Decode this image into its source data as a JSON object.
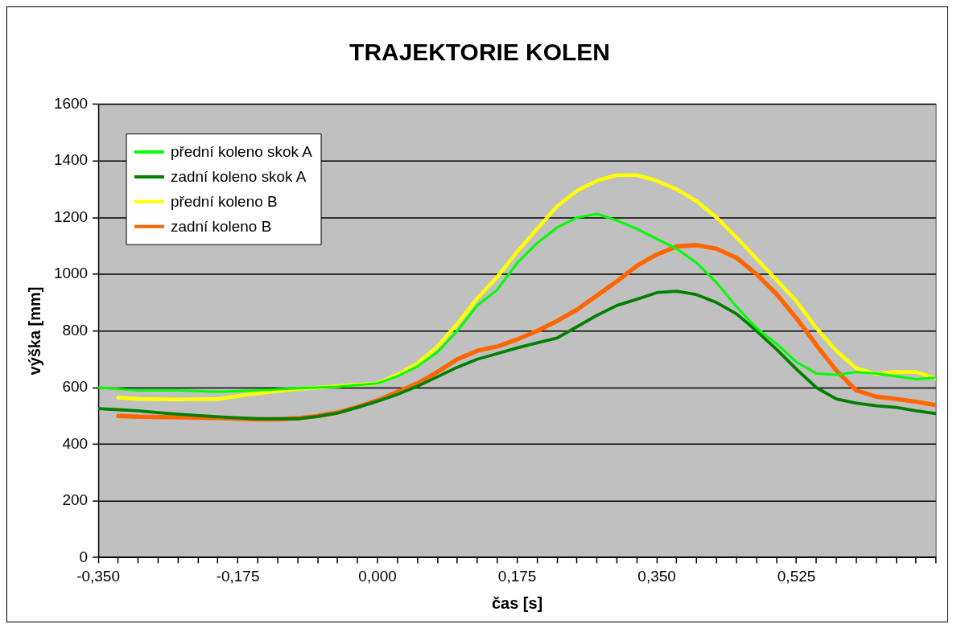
{
  "chart_data": {
    "type": "line",
    "title": "TRAJEKTORIE KOLEN",
    "xlabel": "čas [s]",
    "ylabel": "výška [mm]",
    "xlim": [
      -0.35,
      0.7
    ],
    "xticks": [
      {
        "value": -0.35,
        "label": "-0,350"
      },
      {
        "value": -0.325,
        "label": null
      },
      {
        "value": -0.3,
        "label": null
      },
      {
        "value": -0.275,
        "label": null
      },
      {
        "value": -0.25,
        "label": null
      },
      {
        "value": -0.225,
        "label": null
      },
      {
        "value": -0.2,
        "label": null
      },
      {
        "value": -0.175,
        "label": "-0,175"
      },
      {
        "value": -0.15,
        "label": null
      },
      {
        "value": -0.125,
        "label": null
      },
      {
        "value": -0.1,
        "label": null
      },
      {
        "value": -0.075,
        "label": null
      },
      {
        "value": -0.05,
        "label": null
      },
      {
        "value": -0.025,
        "label": null
      },
      {
        "value": 0,
        "label": "0,000"
      },
      {
        "value": 0.025,
        "label": null
      },
      {
        "value": 0.05,
        "label": null
      },
      {
        "value": 0.075,
        "label": null
      },
      {
        "value": 0.1,
        "label": null
      },
      {
        "value": 0.125,
        "label": null
      },
      {
        "value": 0.15,
        "label": null
      },
      {
        "value": 0.175,
        "label": "0,175"
      },
      {
        "value": 0.2,
        "label": null
      },
      {
        "value": 0.225,
        "label": null
      },
      {
        "value": 0.25,
        "label": null
      },
      {
        "value": 0.275,
        "label": null
      },
      {
        "value": 0.3,
        "label": null
      },
      {
        "value": 0.325,
        "label": null
      },
      {
        "value": 0.35,
        "label": "0,350"
      },
      {
        "value": 0.375,
        "label": null
      },
      {
        "value": 0.4,
        "label": null
      },
      {
        "value": 0.425,
        "label": null
      },
      {
        "value": 0.45,
        "label": null
      },
      {
        "value": 0.475,
        "label": null
      },
      {
        "value": 0.5,
        "label": null
      },
      {
        "value": 0.525,
        "label": "0,525"
      },
      {
        "value": 0.55,
        "label": null
      },
      {
        "value": 0.575,
        "label": null
      },
      {
        "value": 0.6,
        "label": null
      },
      {
        "value": 0.625,
        "label": null
      },
      {
        "value": 0.65,
        "label": null
      },
      {
        "value": 0.675,
        "label": null
      },
      {
        "value": 0.7,
        "label": null
      }
    ],
    "ylim": [
      0,
      1600
    ],
    "yticks": [
      0,
      200,
      400,
      600,
      800,
      1000,
      1200,
      1400,
      1600
    ],
    "grid": "y",
    "legend": "top left",
    "marker": "none",
    "line_style": "solid",
    "series": [
      {
        "name": "přední koleno skok A",
        "color": "#00ff00",
        "x": [
          -0.35,
          -0.3,
          -0.25,
          -0.2,
          -0.15,
          -0.1,
          -0.05,
          0,
          0.025,
          0.05,
          0.075,
          0.1,
          0.125,
          0.15,
          0.175,
          0.2,
          0.225,
          0.25,
          0.275,
          0.3,
          0.325,
          0.35,
          0.375,
          0.4,
          0.425,
          0.45,
          0.475,
          0.5,
          0.525,
          0.55,
          0.575,
          0.6,
          0.625,
          0.65,
          0.675,
          0.7
        ],
        "values": [
          600,
          590,
          590,
          585,
          590,
          598,
          603,
          615,
          640,
          675,
          725,
          800,
          890,
          945,
          1040,
          1110,
          1165,
          1200,
          1213,
          1190,
          1160,
          1125,
          1090,
          1040,
          970,
          885,
          810,
          755,
          690,
          650,
          645,
          655,
          650,
          640,
          630,
          635
        ]
      },
      {
        "name": "zadní koleno skok A",
        "color": "#008000",
        "x": [
          -0.35,
          -0.325,
          -0.3,
          -0.275,
          -0.25,
          -0.2,
          -0.175,
          -0.15,
          -0.1,
          -0.075,
          -0.05,
          -0.025,
          0,
          0.025,
          0.05,
          0.075,
          0.1,
          0.125,
          0.15,
          0.175,
          0.2,
          0.225,
          0.25,
          0.275,
          0.3,
          0.325,
          0.35,
          0.375,
          0.4,
          0.425,
          0.45,
          0.475,
          0.5,
          0.525,
          0.55,
          0.575,
          0.6,
          0.625,
          0.65,
          0.675,
          0.7
        ],
        "values": [
          526,
          522,
          518,
          512,
          506,
          497,
          493,
          490,
          490,
          498,
          510,
          530,
          552,
          576,
          605,
          638,
          672,
          700,
          720,
          740,
          758,
          775,
          815,
          855,
          890,
          912,
          935,
          940,
          928,
          900,
          860,
          800,
          735,
          665,
          600,
          560,
          545,
          536,
          530,
          518,
          508
        ]
      },
      {
        "name": "přední koleno B",
        "color": "#ffff00",
        "x": [
          -0.325,
          -0.3,
          -0.25,
          -0.2,
          -0.175,
          -0.15,
          -0.1,
          -0.05,
          0,
          0.025,
          0.05,
          0.075,
          0.1,
          0.125,
          0.15,
          0.175,
          0.2,
          0.225,
          0.25,
          0.275,
          0.3,
          0.325,
          0.35,
          0.375,
          0.4,
          0.425,
          0.45,
          0.475,
          0.5,
          0.525,
          0.55,
          0.575,
          0.6,
          0.625,
          0.65,
          0.675,
          0.7
        ],
        "values": [
          565,
          560,
          558,
          560,
          570,
          580,
          595,
          605,
          615,
          645,
          685,
          745,
          825,
          915,
          990,
          1080,
          1160,
          1240,
          1295,
          1330,
          1350,
          1350,
          1330,
          1300,
          1258,
          1200,
          1130,
          1055,
          980,
          905,
          810,
          730,
          668,
          648,
          655,
          655,
          632
        ]
      },
      {
        "name": "zadní koleno B",
        "color": "#ff6600",
        "x": [
          -0.325,
          -0.3,
          -0.25,
          -0.2,
          -0.175,
          -0.15,
          -0.125,
          -0.1,
          -0.075,
          -0.05,
          -0.025,
          0,
          0.025,
          0.05,
          0.075,
          0.1,
          0.125,
          0.15,
          0.175,
          0.2,
          0.225,
          0.25,
          0.275,
          0.3,
          0.325,
          0.35,
          0.375,
          0.4,
          0.425,
          0.45,
          0.475,
          0.5,
          0.525,
          0.55,
          0.575,
          0.6,
          0.625,
          0.65,
          0.675,
          0.7
        ],
        "values": [
          500,
          497,
          495,
          493,
          490,
          488,
          488,
          492,
          500,
          512,
          532,
          555,
          585,
          615,
          655,
          700,
          730,
          745,
          770,
          800,
          835,
          875,
          925,
          975,
          1030,
          1070,
          1098,
          1103,
          1090,
          1058,
          1000,
          930,
          845,
          750,
          660,
          590,
          568,
          560,
          550,
          538
        ]
      }
    ]
  }
}
